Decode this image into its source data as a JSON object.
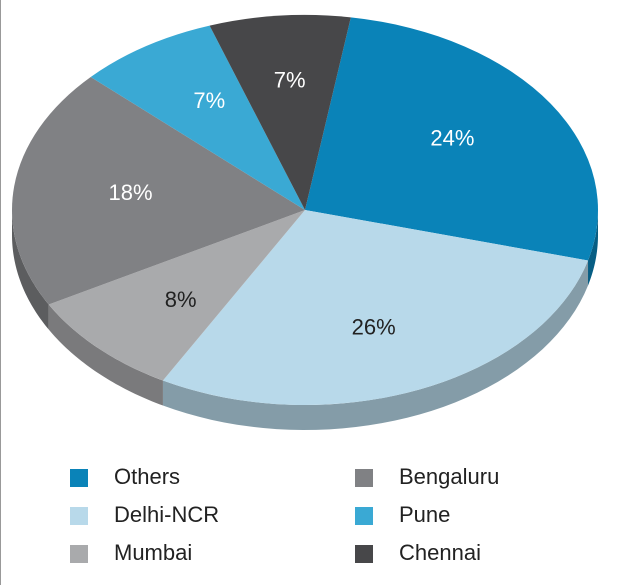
{
  "chart_data": {
    "type": "pie",
    "categories": [
      "Others",
      "Delhi-NCR",
      "Mumbai",
      "Bengaluru",
      "Pune",
      "Chennai"
    ],
    "values": [
      24,
      26,
      8,
      18,
      7,
      7
    ],
    "value_labels": [
      "24%",
      "26%",
      "8%",
      "18%",
      "7%",
      "7%"
    ],
    "colors": [
      "#0a83b8",
      "#b8d9ea",
      "#a9aaac",
      "#808184",
      "#3aa9d4",
      "#474749"
    ]
  }
}
